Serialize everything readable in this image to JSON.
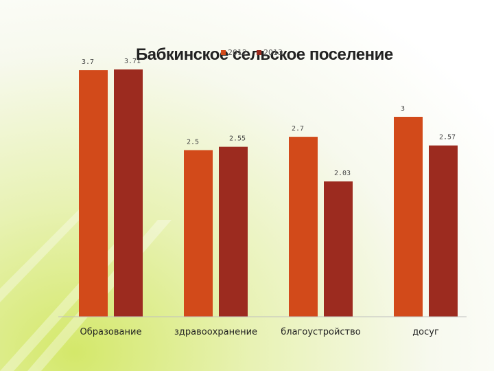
{
  "chart_data": {
    "type": "bar",
    "title": "Бабкинское сельское поселение",
    "categories": [
      "Образование",
      "здравоохранение",
      "благоустройство",
      "досуг"
    ],
    "series": [
      {
        "name": "2012",
        "color": "#d24a1a",
        "values": [
          3.7,
          2.5,
          2.7,
          3
        ],
        "labels": [
          "3.7",
          "2.5",
          "2.7",
          "3"
        ]
      },
      {
        "name": "2013",
        "color": "#9c2b1f",
        "values": [
          3.71,
          2.55,
          2.03,
          2.57
        ],
        "labels": [
          "3.71",
          "2.55",
          "2.03",
          "2.57"
        ]
      }
    ],
    "ylim": [
      0,
      4.4
    ],
    "legend_position": "top-center",
    "grid": false
  }
}
